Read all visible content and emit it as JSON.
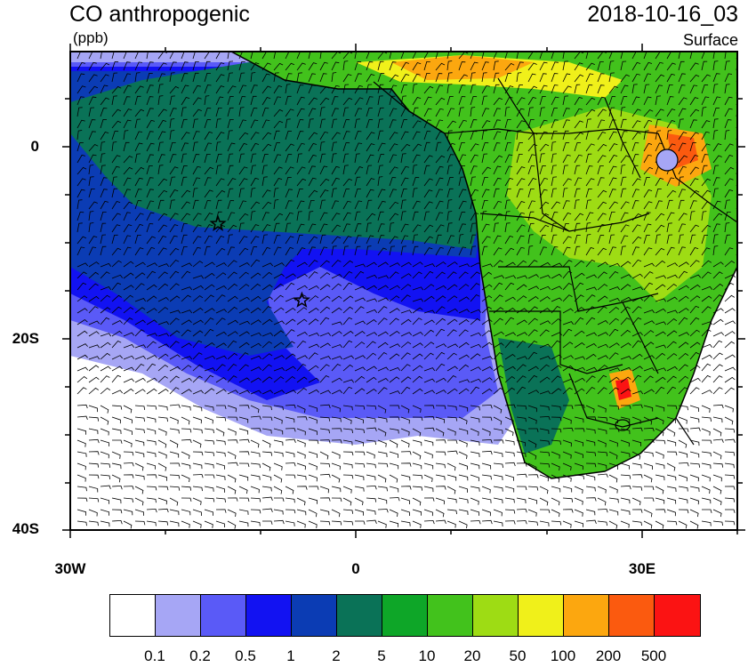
{
  "header": {
    "title": "CO anthropogenic",
    "units": "(ppb)",
    "datetime": "2018-10-16_03",
    "level": "Surface"
  },
  "map": {
    "lon_range": [
      -30,
      40
    ],
    "lat_range": [
      -40,
      10
    ],
    "y_ticks": [
      "0",
      "20S",
      "40S"
    ],
    "x_ticks": [
      "30W",
      "0",
      "30E"
    ],
    "markers": [
      {
        "name": "star-marker-1",
        "lon": -14.5,
        "lat": -8
      },
      {
        "name": "star-marker-2",
        "lon": -5.7,
        "lat": -16
      }
    ]
  },
  "colorbar": {
    "colors": [
      "#ffffff",
      "#a6a6f5",
      "#5a5af7",
      "#1212f2",
      "#0b3cb4",
      "#0a7257",
      "#0ea628",
      "#42c21c",
      "#9edc14",
      "#f0f01a",
      "#fca70f",
      "#fb5a0f",
      "#fb1313"
    ],
    "labels": [
      "0.1",
      "0.2",
      "0.5",
      "1",
      "2",
      "5",
      "10",
      "20",
      "50",
      "100",
      "200",
      "500"
    ]
  }
}
